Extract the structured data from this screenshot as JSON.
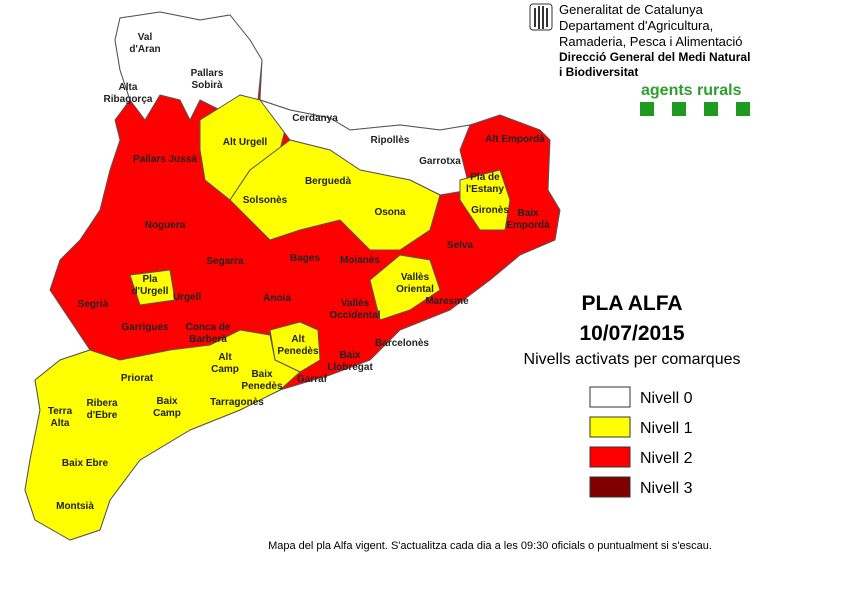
{
  "header": {
    "org": [
      "Generalitat de Catalunya",
      "Departament d'Agricultura,",
      "Ramaderia, Pesca i Alimentació"
    ],
    "direction": [
      "Direcció General del Medi Natural",
      "i Biodiversitat"
    ],
    "brand": "agents rurals"
  },
  "title": "PLA ALFA",
  "date": "10/07/2015",
  "subtitle": "Nivells activats per comarques",
  "legend": [
    {
      "label": "Nivell 0",
      "color": "#ffffff"
    },
    {
      "label": "Nivell 1",
      "color": "#ffff00"
    },
    {
      "label": "Nivell 2",
      "color": "#ff0000"
    },
    {
      "label": "Nivell 3",
      "color": "#800000"
    }
  ],
  "comarques": [
    [
      "Val",
      "d'Aran"
    ],
    [
      "Alta",
      "Ribagorça"
    ],
    [
      "Pallars",
      "Sobirà"
    ],
    [
      "Alt Urgell"
    ],
    [
      "Cerdanya"
    ],
    [
      "Ripollès"
    ],
    [
      "Garrotxa"
    ],
    [
      "Alt Empordà"
    ],
    [
      "Pallars Jussà"
    ],
    [
      "Berguedà"
    ],
    [
      "Pla de",
      "l'Estany"
    ],
    [
      "Solsonès"
    ],
    [
      "Osona"
    ],
    [
      "Gironès"
    ],
    [
      "Baix",
      "Empordà"
    ],
    [
      "Noguera"
    ],
    [
      "Selva"
    ],
    [
      "Bages"
    ],
    [
      "Moianès"
    ],
    [
      "Segarra"
    ],
    [
      "Pla",
      "d'Urgell"
    ],
    [
      "Vallès",
      "Oriental"
    ],
    [
      "Segrià"
    ],
    [
      "Urgell"
    ],
    [
      "Anoia"
    ],
    [
      "Vallès",
      "Occidental"
    ],
    [
      "Maresme"
    ],
    [
      "Garrigues"
    ],
    [
      "Conca de",
      "Barberà"
    ],
    [
      "Alt",
      "Penedès"
    ],
    [
      "Barcelonès"
    ],
    [
      "Baix",
      "Llobregat"
    ],
    [
      "Alt",
      "Camp"
    ],
    [
      "Priorat"
    ],
    [
      "Baix",
      "Penedès"
    ],
    [
      "Garraf"
    ],
    [
      "Terra",
      "Alta"
    ],
    [
      "Ribera",
      "d'Ebre"
    ],
    [
      "Baix",
      "Camp"
    ],
    [
      "Tarragonès"
    ],
    [
      "Baix Ebre"
    ],
    [
      "Montsià"
    ]
  ],
  "footnote": "Mapa del pla Alfa vigent.  S'actualitza cada dia a les 09:30 oficials o puntualment  si s'escau."
}
